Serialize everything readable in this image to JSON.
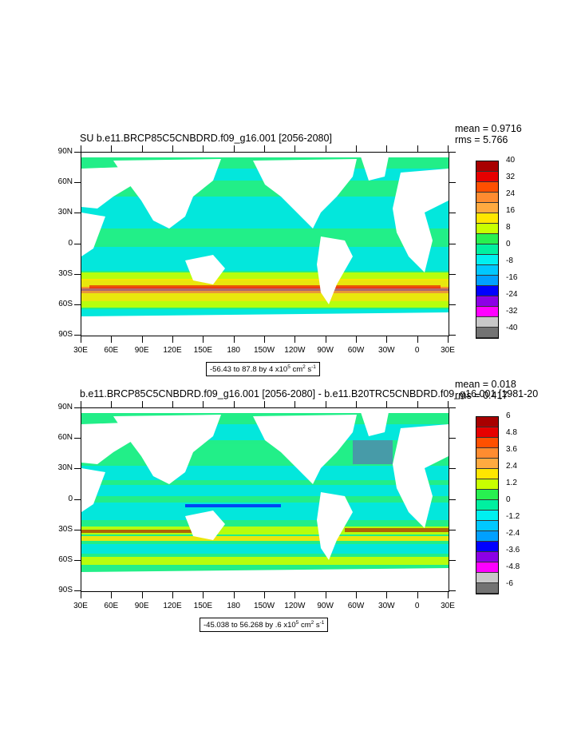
{
  "panels": [
    {
      "title": "SU b.e11.BRCP85C5CNBDRD.f09_g16.001 [2056-2080]",
      "stats": {
        "mean": "mean = 0.9716",
        "rms": "rms = 5.766"
      },
      "range_text": "-56.43 to 87.8 by 4 x10",
      "range_unit": "cm",
      "colorbar_labels": [
        "40",
        "32",
        "24",
        "16",
        "8",
        "0",
        "-8",
        "-16",
        "-24",
        "-32",
        "-40"
      ]
    },
    {
      "title": "b.e11.BRCP85C5CNBDRD.f09_g16.001 [2056-2080] - b.e11.B20TRC5CNBDRD.f09_g16.001 [1981-20",
      "stats": {
        "mean": "mean = 0.018",
        "rms": "rms = 0.417"
      },
      "range_text": "-45.038 to 56.268 by .6 x10",
      "range_unit": "cm",
      "colorbar_labels": [
        "6",
        "4.8",
        "3.6",
        "2.4",
        "1.2",
        "0",
        "-1.2",
        "-2.4",
        "-3.6",
        "-4.8",
        "-6"
      ]
    }
  ],
  "axes": {
    "lat_labels": [
      "90N",
      "60N",
      "30N",
      "0",
      "30S",
      "60S",
      "90S"
    ],
    "lon_labels": [
      "30E",
      "60E",
      "90E",
      "120E",
      "150E",
      "180",
      "150W",
      "120W",
      "90W",
      "60W",
      "30W",
      "0",
      "30E"
    ]
  },
  "colorbar_colors": [
    "#a80000",
    "#e60000",
    "#ff5000",
    "#ff8c30",
    "#ffaa40",
    "#ffe600",
    "#c8ff00",
    "#28f050",
    "#00f0a0",
    "#00f0f0",
    "#00c8ff",
    "#00a0ff",
    "#0000ff",
    "#8c00e6",
    "#ff00ff",
    "#c8c8c8",
    "#737373"
  ],
  "colors": {
    "ocean": "#22ee88",
    "ocean_alt": "#00e5e5",
    "land": "#ffffff"
  }
}
